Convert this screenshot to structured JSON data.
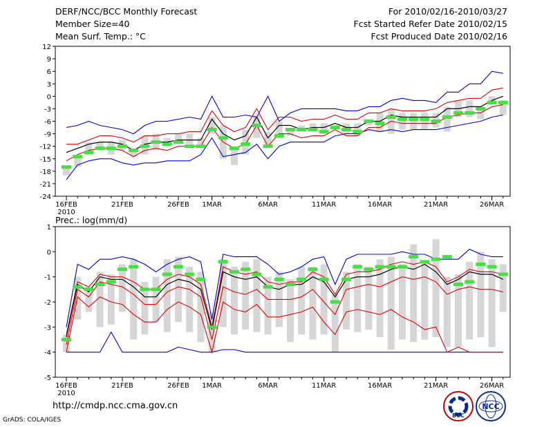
{
  "header": {
    "title": "DERF/NCC/BCC Monthly Forecast",
    "member_size": "Member Size=40",
    "variable": "Mean Surf. Temp.: °C",
    "period": "For 2010/02/16-2010/03/27",
    "fcst_started": "Fcst Started Refer Date 2010/02/15",
    "fcst_produced": "Fcst Produced Date 2010/02/16"
  },
  "footer": {
    "url": "http://cmdp.ncc.cma.gov.cn",
    "grads": "GrADS: COLA/IGES",
    "logo_left": "BCC",
    "logo_right": "NCC"
  },
  "colors": {
    "envelope": "#0000cc",
    "spread": "#e00000",
    "mean": "#000000",
    "box": "#d6d6d6",
    "observed": "#44e044"
  },
  "chart_data": [
    {
      "type": "line",
      "title": "Mean Surf. Temp.: °C",
      "xlabel": "",
      "ylabel": "°C",
      "x": [
        1,
        2,
        3,
        4,
        5,
        6,
        7,
        8,
        9,
        10,
        11,
        12,
        13,
        14,
        15,
        16,
        17,
        18,
        19,
        20,
        21,
        22,
        23,
        24,
        25,
        26,
        27,
        28,
        29,
        30,
        31,
        32,
        33,
        34,
        35,
        36,
        37,
        38,
        39,
        40
      ],
      "x_ticks": {
        "positions": [
          1,
          6,
          11,
          14,
          19,
          24,
          29,
          34,
          39
        ],
        "labels": [
          "16FEB",
          "21FEB",
          "26FEB",
          "1MAR",
          "6MAR",
          "11MAR",
          "16MAR",
          "21MAR",
          "26MAR"
        ],
        "year_label": "2010"
      },
      "ylim": [
        -24,
        12
      ],
      "yticks": [
        -24,
        -21,
        -18,
        -15,
        -12,
        -9,
        -6,
        -3,
        0,
        3,
        6,
        9,
        12
      ],
      "series": [
        {
          "name": "max",
          "values": [
            -7.5,
            -7,
            -6,
            -7,
            -7.5,
            -8,
            -9,
            -7,
            -6,
            -6,
            -5.5,
            -5,
            -5.5,
            0,
            -5,
            -5,
            -4.5,
            -5,
            0,
            -6,
            -4,
            -3,
            -3,
            -3,
            -3,
            -3.5,
            -3.5,
            -2.5,
            -2.5,
            -1,
            -0.5,
            -1,
            -1,
            -1.5,
            1,
            1,
            3,
            3,
            6,
            5.5
          ]
        },
        {
          "name": "upper",
          "values": [
            -11.5,
            -11.5,
            -10.5,
            -9.5,
            -9.5,
            -10,
            -11,
            -9.5,
            -9.5,
            -9,
            -9,
            -8.5,
            -8.5,
            -3.5,
            -7,
            -8.5,
            -7.5,
            -3,
            -8,
            -5,
            -5,
            -6,
            -5.5,
            -5.5,
            -4.5,
            -5.5,
            -5.5,
            -4,
            -4,
            -3,
            -3.5,
            -3.5,
            -3.5,
            -3,
            -1.5,
            -1,
            -0.5,
            -0.5,
            1.5,
            2
          ]
        },
        {
          "name": "mean",
          "values": [
            -13.5,
            -12.5,
            -11.5,
            -11,
            -11,
            -11.5,
            -13,
            -11.5,
            -11,
            -11,
            -10.5,
            -10.5,
            -10.5,
            -5.5,
            -9,
            -10.5,
            -9.5,
            -5,
            -10,
            -7,
            -7,
            -8,
            -7.5,
            -7.5,
            -6.5,
            -7.5,
            -7.5,
            -6,
            -6,
            -4.5,
            -5,
            -5,
            -5,
            -5,
            -3,
            -3,
            -2.5,
            -2.5,
            -1,
            0
          ]
        },
        {
          "name": "lower",
          "values": [
            -15.5,
            -14,
            -13,
            -12.5,
            -12.5,
            -13,
            -14.5,
            -13,
            -12.5,
            -13,
            -12,
            -12,
            -12,
            -7.5,
            -11,
            -12.5,
            -11.5,
            -7,
            -12,
            -9,
            -9,
            -10,
            -9.5,
            -9.5,
            -8,
            -9.5,
            -9.5,
            -7.5,
            -7.5,
            -6,
            -6.5,
            -6.5,
            -6.5,
            -6.5,
            -5,
            -4.5,
            -4,
            -4,
            -2.5,
            -2
          ]
        },
        {
          "name": "min",
          "values": [
            -20,
            -16.5,
            -15.5,
            -15,
            -15,
            -16,
            -16.5,
            -16,
            -16,
            -15.5,
            -15.5,
            -15.5,
            -14,
            -10,
            -14.5,
            -14,
            -13.5,
            -11.5,
            -15,
            -12,
            -11,
            -11,
            -11,
            -11,
            -9.5,
            -9,
            -9,
            -8,
            -8.5,
            -8,
            -8.5,
            -8,
            -8,
            -8,
            -7.5,
            -7,
            -6.5,
            -6,
            -5,
            -4.5
          ]
        },
        {
          "name": "box_top",
          "values": [
            -17,
            -14.5,
            -11,
            -11,
            -11,
            -10.5,
            -12.5,
            -9.5,
            -9,
            -10,
            -9,
            -9,
            -10,
            -5,
            -7,
            -12.5,
            -8,
            -4.5,
            -8.5,
            -6,
            -8,
            -7,
            -6.5,
            -6.5,
            -7,
            -6.5,
            -6.5,
            -5.5,
            -4,
            -3,
            -4,
            -4,
            -4,
            -4,
            -2.5,
            -1,
            -1,
            -2.5,
            0,
            -1
          ]
        },
        {
          "name": "box_bottom",
          "values": [
            -19,
            -17,
            -14,
            -12.5,
            -14,
            -13,
            -14.5,
            -14,
            -13,
            -12,
            -11,
            -11.5,
            -11.5,
            -9,
            -15,
            -16.5,
            -14,
            -10,
            -12,
            -10,
            -9.5,
            -8.5,
            -8.5,
            -8.5,
            -7.5,
            -9,
            -9.5,
            -7,
            -8.5,
            -9,
            -8,
            -8,
            -8,
            -7.5,
            -8.5,
            -5,
            -5,
            -5.5,
            -2,
            -4.5
          ]
        },
        {
          "name": "observed",
          "values": [
            -17,
            -14.5,
            -13.5,
            -12.5,
            -12.5,
            -12,
            -13,
            -12,
            -11,
            -11.5,
            -11,
            -12,
            -12,
            -8,
            -10,
            -12.5,
            -11.5,
            -7,
            -12,
            -9.5,
            -8,
            -8,
            -8,
            -8.5,
            -7.5,
            -8,
            -8.5,
            -6,
            -6.5,
            -5,
            -5.5,
            -5.5,
            -5.5,
            -6,
            -5,
            -4,
            -4,
            -3,
            -1.5,
            -1.5
          ]
        }
      ]
    },
    {
      "type": "line",
      "title": "Prec.: log(mm/d)",
      "xlabel": "",
      "ylabel": "log(mm/d)",
      "x": [
        1,
        2,
        3,
        4,
        5,
        6,
        7,
        8,
        9,
        10,
        11,
        12,
        13,
        14,
        15,
        16,
        17,
        18,
        19,
        20,
        21,
        22,
        23,
        24,
        25,
        26,
        27,
        28,
        29,
        30,
        31,
        32,
        33,
        34,
        35,
        36,
        37,
        38,
        39,
        40
      ],
      "x_ticks": {
        "positions": [
          1,
          6,
          11,
          14,
          19,
          24,
          29,
          34,
          39
        ],
        "labels": [
          "16FEB",
          "21FEB",
          "26FEB",
          "1MAR",
          "6MAR",
          "11MAR",
          "16MAR",
          "21MAR",
          "26MAR"
        ],
        "year_label": "2010"
      },
      "ylim": [
        -5,
        1
      ],
      "yticks": [
        -5,
        -4,
        -3,
        -2,
        -1,
        0,
        1
      ],
      "series": [
        {
          "name": "max",
          "values": [
            -3.0,
            -0.5,
            -0.7,
            -0.3,
            -0.3,
            -0.2,
            -0.3,
            -0.5,
            -0.8,
            -0.5,
            -0.3,
            -0.2,
            -0.4,
            -2.7,
            -0.1,
            -0.2,
            -0.2,
            -0.2,
            -0.5,
            -0.9,
            -0.8,
            -0.6,
            -0.3,
            -0.2,
            -1.3,
            -0.3,
            -0.1,
            -0.1,
            -0.1,
            -0.1,
            0.0,
            -0.1,
            -0.1,
            -0.3,
            -0.3,
            -0.3,
            0.1,
            -0.1,
            -0.2,
            -0.2
          ]
        },
        {
          "name": "upper",
          "values": [
            -3.3,
            -1.2,
            -1.4,
            -0.9,
            -1.0,
            -1.0,
            -1.2,
            -1.5,
            -1.5,
            -1.1,
            -0.9,
            -1.0,
            -1.3,
            -3.0,
            -0.6,
            -0.8,
            -0.9,
            -0.8,
            -1.2,
            -1.3,
            -1.2,
            -1.2,
            -0.8,
            -1.0,
            -1.7,
            -0.9,
            -0.8,
            -0.8,
            -0.7,
            -0.5,
            -0.4,
            -0.5,
            -0.4,
            -0.6,
            -1.2,
            -1.0,
            -0.7,
            -0.8,
            -0.8,
            -0.9
          ]
        },
        {
          "name": "mean",
          "values": [
            -3.4,
            -1.3,
            -1.6,
            -1.0,
            -1.1,
            -1.1,
            -1.4,
            -1.8,
            -1.8,
            -1.3,
            -1.1,
            -1.2,
            -1.5,
            -3.1,
            -0.8,
            -1.0,
            -1.1,
            -1.0,
            -1.4,
            -1.5,
            -1.3,
            -1.3,
            -1.0,
            -1.2,
            -1.8,
            -1.1,
            -1.0,
            -1.0,
            -0.9,
            -0.7,
            -0.6,
            -0.7,
            -0.5,
            -0.8,
            -1.3,
            -1.1,
            -0.8,
            -0.9,
            -0.9,
            -1.1
          ]
        },
        {
          "name": "lower",
          "values": [
            -3.7,
            -1.5,
            -1.8,
            -1.2,
            -1.3,
            -1.4,
            -1.7,
            -2.1,
            -2.1,
            -1.6,
            -1.4,
            -1.5,
            -1.8,
            -3.5,
            -1.4,
            -1.6,
            -1.7,
            -1.5,
            -1.9,
            -1.9,
            -1.9,
            -1.8,
            -1.5,
            -2.0,
            -2.5,
            -1.5,
            -1.4,
            -1.3,
            -1.4,
            -1.2,
            -1.0,
            -1.1,
            -1.0,
            -1.2,
            -1.7,
            -1.5,
            -1.4,
            -1.5,
            -1.5,
            -1.6
          ]
        },
        {
          "name": "lower2",
          "values": [
            -4.0,
            -1.8,
            -2.2,
            -1.8,
            -2.0,
            -2.1,
            -2.5,
            -2.8,
            -2.8,
            -2.3,
            -2.0,
            -2.2,
            -2.5,
            -4.0,
            -2.0,
            -2.3,
            -2.4,
            -2.1,
            -2.6,
            -2.6,
            -2.5,
            -2.4,
            -2.2,
            -2.8,
            -3.3,
            -2.4,
            -2.3,
            -2.4,
            -2.5,
            -2.3,
            -2.6,
            -2.8,
            -3.1,
            -3.0,
            -4.0,
            -3.8,
            -4.0,
            -4.0,
            -4.0,
            -4.0
          ]
        },
        {
          "name": "min",
          "values": [
            -4.0,
            -4.0,
            -4.0,
            -4.0,
            -3.2,
            -4.0,
            -4.0,
            -4.0,
            -4.0,
            -4.0,
            -3.8,
            -3.9,
            -4.0,
            -4.0,
            -3.9,
            -3.9,
            -4.0,
            -4.0,
            -4.0,
            -4.0,
            -4.0,
            -4.0,
            -4.0,
            -4.0,
            -4.0,
            -4.0,
            -4.0,
            -4.0,
            -4.0,
            -4.0,
            -4.0,
            -4.0,
            -4.0,
            -4.0,
            -4.0,
            -4.0,
            -4.0,
            -4.0,
            -4.0,
            -4.0
          ]
        },
        {
          "name": "box_top",
          "values": [
            -3.3,
            -1.0,
            -1.4,
            -0.8,
            -0.9,
            -0.5,
            -0.3,
            -1.2,
            -1.0,
            -0.3,
            -0.2,
            -0.6,
            -0.8,
            -2.4,
            -0.3,
            -0.6,
            -0.4,
            -0.3,
            -1.0,
            -0.8,
            -1.1,
            -0.6,
            -0.6,
            -0.5,
            -1.7,
            -0.8,
            -0.5,
            -0.6,
            -0.3,
            -0.2,
            -0.5,
            0.3,
            -0.4,
            0.5,
            -1.0,
            -0.9,
            -0.4,
            0.0,
            -0.3,
            -0.5
          ]
        },
        {
          "name": "box_bottom",
          "values": [
            -4.0,
            -2.7,
            -2.4,
            -3.0,
            -2.9,
            -2.4,
            -3.5,
            -3.3,
            -2.8,
            -3.2,
            -2.8,
            -3.2,
            -3.6,
            -4.0,
            -3.0,
            -3.3,
            -3.1,
            -3.2,
            -3.3,
            -3.0,
            -3.6,
            -3.3,
            -3.5,
            -3.3,
            -4.0,
            -3.1,
            -3.2,
            -3.1,
            -3.4,
            -3.9,
            -3.5,
            -3.6,
            -3.5,
            -3.4,
            -3.8,
            -3.8,
            -3.5,
            -3.4,
            -3.8,
            -2.4
          ]
        },
        {
          "name": "observed",
          "values": [
            -3.5,
            -1.4,
            -1.5,
            -1.3,
            -1.2,
            -0.7,
            -0.6,
            -1.5,
            -1.5,
            -0.9,
            -0.6,
            -0.9,
            -1.1,
            -3.0,
            -0.4,
            -0.8,
            -0.7,
            -0.9,
            -1.4,
            -1.1,
            -1.3,
            -1.1,
            -0.7,
            -1.1,
            -2.0,
            -1.1,
            -0.6,
            -0.7,
            -0.6,
            -0.6,
            -0.6,
            -0.2,
            -0.4,
            -0.3,
            -0.2,
            -1.3,
            -1.2,
            -0.5,
            -0.6,
            -0.9
          ]
        }
      ]
    }
  ]
}
